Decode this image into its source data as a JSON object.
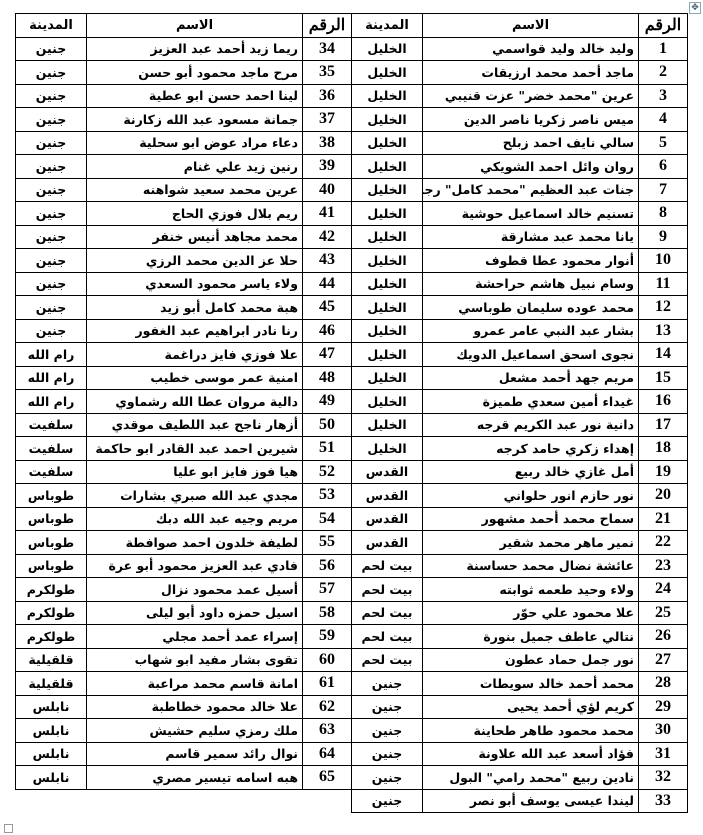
{
  "headers": {
    "number": "الرقم",
    "name": "الاسم",
    "city": "المدينة"
  },
  "right_rows": [
    {
      "num": "1",
      "name": "وليد خالد وليد قواسمي",
      "city": "الخليل"
    },
    {
      "num": "2",
      "name": "ماجد أحمد محمد ارزيقات",
      "city": "الخليل"
    },
    {
      "num": "3",
      "name": "عرين \"محمد خضر\" عزت قنيبي",
      "city": "الخليل"
    },
    {
      "num": "4",
      "name": "ميس ناصر زكريا ناصر الدين",
      "city": "الخليل"
    },
    {
      "num": "5",
      "name": "سالي نايف احمد زبلح",
      "city": "الخليل"
    },
    {
      "num": "6",
      "name": "روان وائل احمد الشويكي",
      "city": "الخليل"
    },
    {
      "num": "7",
      "name": "جنات عبد العظيم \"محمد كامل\" رجبي",
      "city": "الخليل"
    },
    {
      "num": "8",
      "name": "تسنيم خالد اسماعيل حوشية",
      "city": "الخليل"
    },
    {
      "num": "9",
      "name": "يانا محمد عبد مشارقة",
      "city": "الخليل"
    },
    {
      "num": "10",
      "name": "أنوار محمود عطا قطوف",
      "city": "الخليل"
    },
    {
      "num": "11",
      "name": "وسام نبيل هاشم حراحشة",
      "city": "الخليل"
    },
    {
      "num": "12",
      "name": "محمد عوده سليمان طوباسي",
      "city": "الخليل"
    },
    {
      "num": "13",
      "name": "بشار عبد النبي عامر عمرو",
      "city": "الخليل"
    },
    {
      "num": "14",
      "name": "نجوى اسحق اسماعيل الدويك",
      "city": "الخليل"
    },
    {
      "num": "15",
      "name": "مريم جهد أحمد مشعل",
      "city": "الخليل"
    },
    {
      "num": "16",
      "name": "غيداء أمين سعدي طميزة",
      "city": "الخليل"
    },
    {
      "num": "17",
      "name": "دانية نور عبد الكريم قرجه",
      "city": "الخليل"
    },
    {
      "num": "18",
      "name": "إهداء زكري حامد كرجه",
      "city": "الخليل"
    },
    {
      "num": "19",
      "name": "أمل غازي خالد ربيع",
      "city": "القدس"
    },
    {
      "num": "20",
      "name": "نور حازم انور حلواني",
      "city": "القدس"
    },
    {
      "num": "21",
      "name": "سماح محمد أحمد مشهور",
      "city": "القدس"
    },
    {
      "num": "22",
      "name": "نمير ماهر محمد شقير",
      "city": "القدس"
    },
    {
      "num": "23",
      "name": "عائشة نضال محمد حساسنة",
      "city": "بيت لحم"
    },
    {
      "num": "24",
      "name": "ولاء وحيد طعمه ثوابته",
      "city": "بيت لحم"
    },
    {
      "num": "25",
      "name": "علا محمود علي حوّر",
      "city": "بيت لحم"
    },
    {
      "num": "26",
      "name": "نتالي عاطف جميل بنورة",
      "city": "بيت لحم"
    },
    {
      "num": "27",
      "name": "نور جمل حماد عطون",
      "city": "بيت لحم"
    },
    {
      "num": "28",
      "name": "محمد أحمد خالد سويطات",
      "city": "جنين"
    },
    {
      "num": "29",
      "name": "كريم لؤي أحمد يحيى",
      "city": "جنين"
    },
    {
      "num": "30",
      "name": "محمد محمود طاهر طحاينة",
      "city": "جنين"
    },
    {
      "num": "31",
      "name": "فؤاد أسعد عبد الله علاونة",
      "city": "جنين"
    },
    {
      "num": "32",
      "name": "نادين ربيع \"محمد رامي\" البول",
      "city": "جنين"
    },
    {
      "num": "33",
      "name": "ليندا عيسى يوسف أبو نصر",
      "city": "جنين"
    }
  ],
  "left_rows": [
    {
      "num": "34",
      "name": "ريما زيد أحمد عبد العزيز",
      "city": "جنين"
    },
    {
      "num": "35",
      "name": "مرح ماجد محمود أبو حسن",
      "city": "جنين"
    },
    {
      "num": "36",
      "name": "لينا احمد حسن ابو عطية",
      "city": "جنين"
    },
    {
      "num": "37",
      "name": "جمانة مسعود عبد الله زكارنة",
      "city": "جنين"
    },
    {
      "num": "38",
      "name": "دعاء مراد عوض ابو سحلية",
      "city": "جنين"
    },
    {
      "num": "39",
      "name": "رنين زيد علي غنام",
      "city": "جنين"
    },
    {
      "num": "40",
      "name": "عرين محمد سعيد شواهنه",
      "city": "جنين"
    },
    {
      "num": "41",
      "name": "ريم بلال فوزي الحاج",
      "city": "جنين"
    },
    {
      "num": "42",
      "name": "محمد مجاهد أنيس خنفر",
      "city": "جنين"
    },
    {
      "num": "43",
      "name": "حلا عز الدين محمد الرزي",
      "city": "جنين"
    },
    {
      "num": "44",
      "name": "ولاء ياسر محمود السعدي",
      "city": "جنين"
    },
    {
      "num": "45",
      "name": "هبة محمد كامل أبو زيد",
      "city": "جنين"
    },
    {
      "num": "46",
      "name": "رنا نادر ابراهيم عبد الغفور",
      "city": "جنين"
    },
    {
      "num": "47",
      "name": "علا فوزي فايز دراغمة",
      "city": "رام الله"
    },
    {
      "num": "48",
      "name": "امنية عمر موسى خطيب",
      "city": "رام الله"
    },
    {
      "num": "49",
      "name": "دالية مروان عطا الله رشماوي",
      "city": "رام الله"
    },
    {
      "num": "50",
      "name": "أزهار ناجح عبد اللطيف موقدي",
      "city": "سلفيت"
    },
    {
      "num": "51",
      "name": "شيرين احمد عبد القادر ابو حاكمة",
      "city": "سلفيت"
    },
    {
      "num": "52",
      "name": "هيا فوز فايز ابو عليا",
      "city": "سلفيت"
    },
    {
      "num": "53",
      "name": "مجدي عبد الله صبري بشارات",
      "city": "طوباس"
    },
    {
      "num": "54",
      "name": "مريم وجيه عبد الله دبك",
      "city": "طوباس"
    },
    {
      "num": "55",
      "name": "لطيفة خلدون احمد صوافطة",
      "city": "طوباس"
    },
    {
      "num": "56",
      "name": "فادي عبد العزيز محمود أبو عرة",
      "city": "طوباس"
    },
    {
      "num": "57",
      "name": "أسيل عمد محمود نزال",
      "city": "طولكرم"
    },
    {
      "num": "58",
      "name": "اسيل حمزه داود أبو ليلى",
      "city": "طولكرم"
    },
    {
      "num": "59",
      "name": "إسراء عمد أحمد مجلي",
      "city": "طولكرم"
    },
    {
      "num": "60",
      "name": "تقوى بشار مفيد ابو شهاب",
      "city": "قلقيلية"
    },
    {
      "num": "61",
      "name": "امانة قاسم محمد مراعبة",
      "city": "قلقيلية"
    },
    {
      "num": "62",
      "name": "علا خالد محمود خطاطبة",
      "city": "نابلس"
    },
    {
      "num": "63",
      "name": "ملك رمزي سليم حشيش",
      "city": "نابلس"
    },
    {
      "num": "64",
      "name": "نوال رائد سمير قاسم",
      "city": "نابلس"
    },
    {
      "num": "65",
      "name": "هبه اسامه تيسير مصري",
      "city": "نابلس"
    }
  ]
}
